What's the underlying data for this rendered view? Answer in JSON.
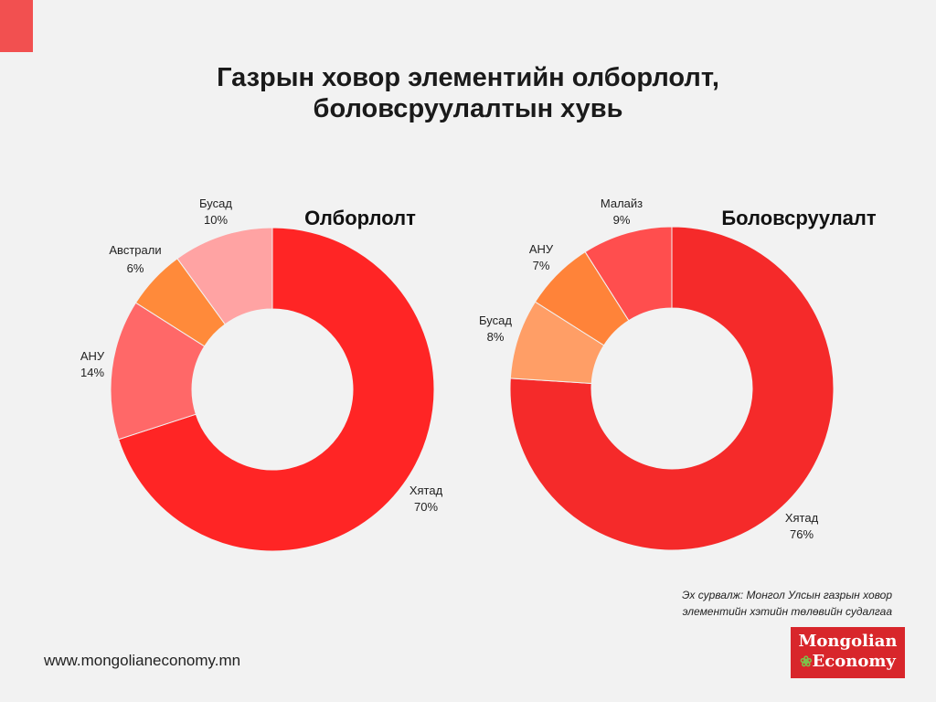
{
  "header": {
    "title_line1": "Газрын ховор элементийн олборлолт,",
    "title_line2": "боловсруулалтын хувь"
  },
  "chart_data": [
    {
      "type": "pie",
      "title": "Олборлолт",
      "slices": [
        {
          "label": "Хятад",
          "value": 70,
          "display": "70%",
          "color": "#ff2525"
        },
        {
          "label": "АНУ",
          "value": 14,
          "display": "14%",
          "color": "#ff6868"
        },
        {
          "label": "Австрали",
          "value": 6,
          "display": "6%",
          "color": "#ff8a3a"
        },
        {
          "label": "Бусад",
          "value": 10,
          "display": "10%",
          "color": "#ffa3a3"
        }
      ]
    },
    {
      "type": "pie",
      "title": "Боловсруулалт",
      "slices": [
        {
          "label": "Хятад",
          "value": 76,
          "display": "76%",
          "color": "#f52a2a"
        },
        {
          "label": "Бусад",
          "value": 8,
          "display": "8%",
          "color": "#ff9e66"
        },
        {
          "label": "АНУ",
          "value": 7,
          "display": "7%",
          "color": "#ff8339"
        },
        {
          "label": "Малайз",
          "value": 9,
          "display": "9%",
          "color": "#ff4e4e"
        }
      ]
    }
  ],
  "footer": {
    "source_line1": "Эх сурвалж: Монгол Улсын газрын ховор",
    "source_line2": "элементийн хэтийн төлөвийн судалгаа",
    "website": "www.mongolianeconomy.mn",
    "logo_line1": "Mongolian",
    "logo_line2": "Economy",
    "logo_icon": "leaf-icon"
  }
}
